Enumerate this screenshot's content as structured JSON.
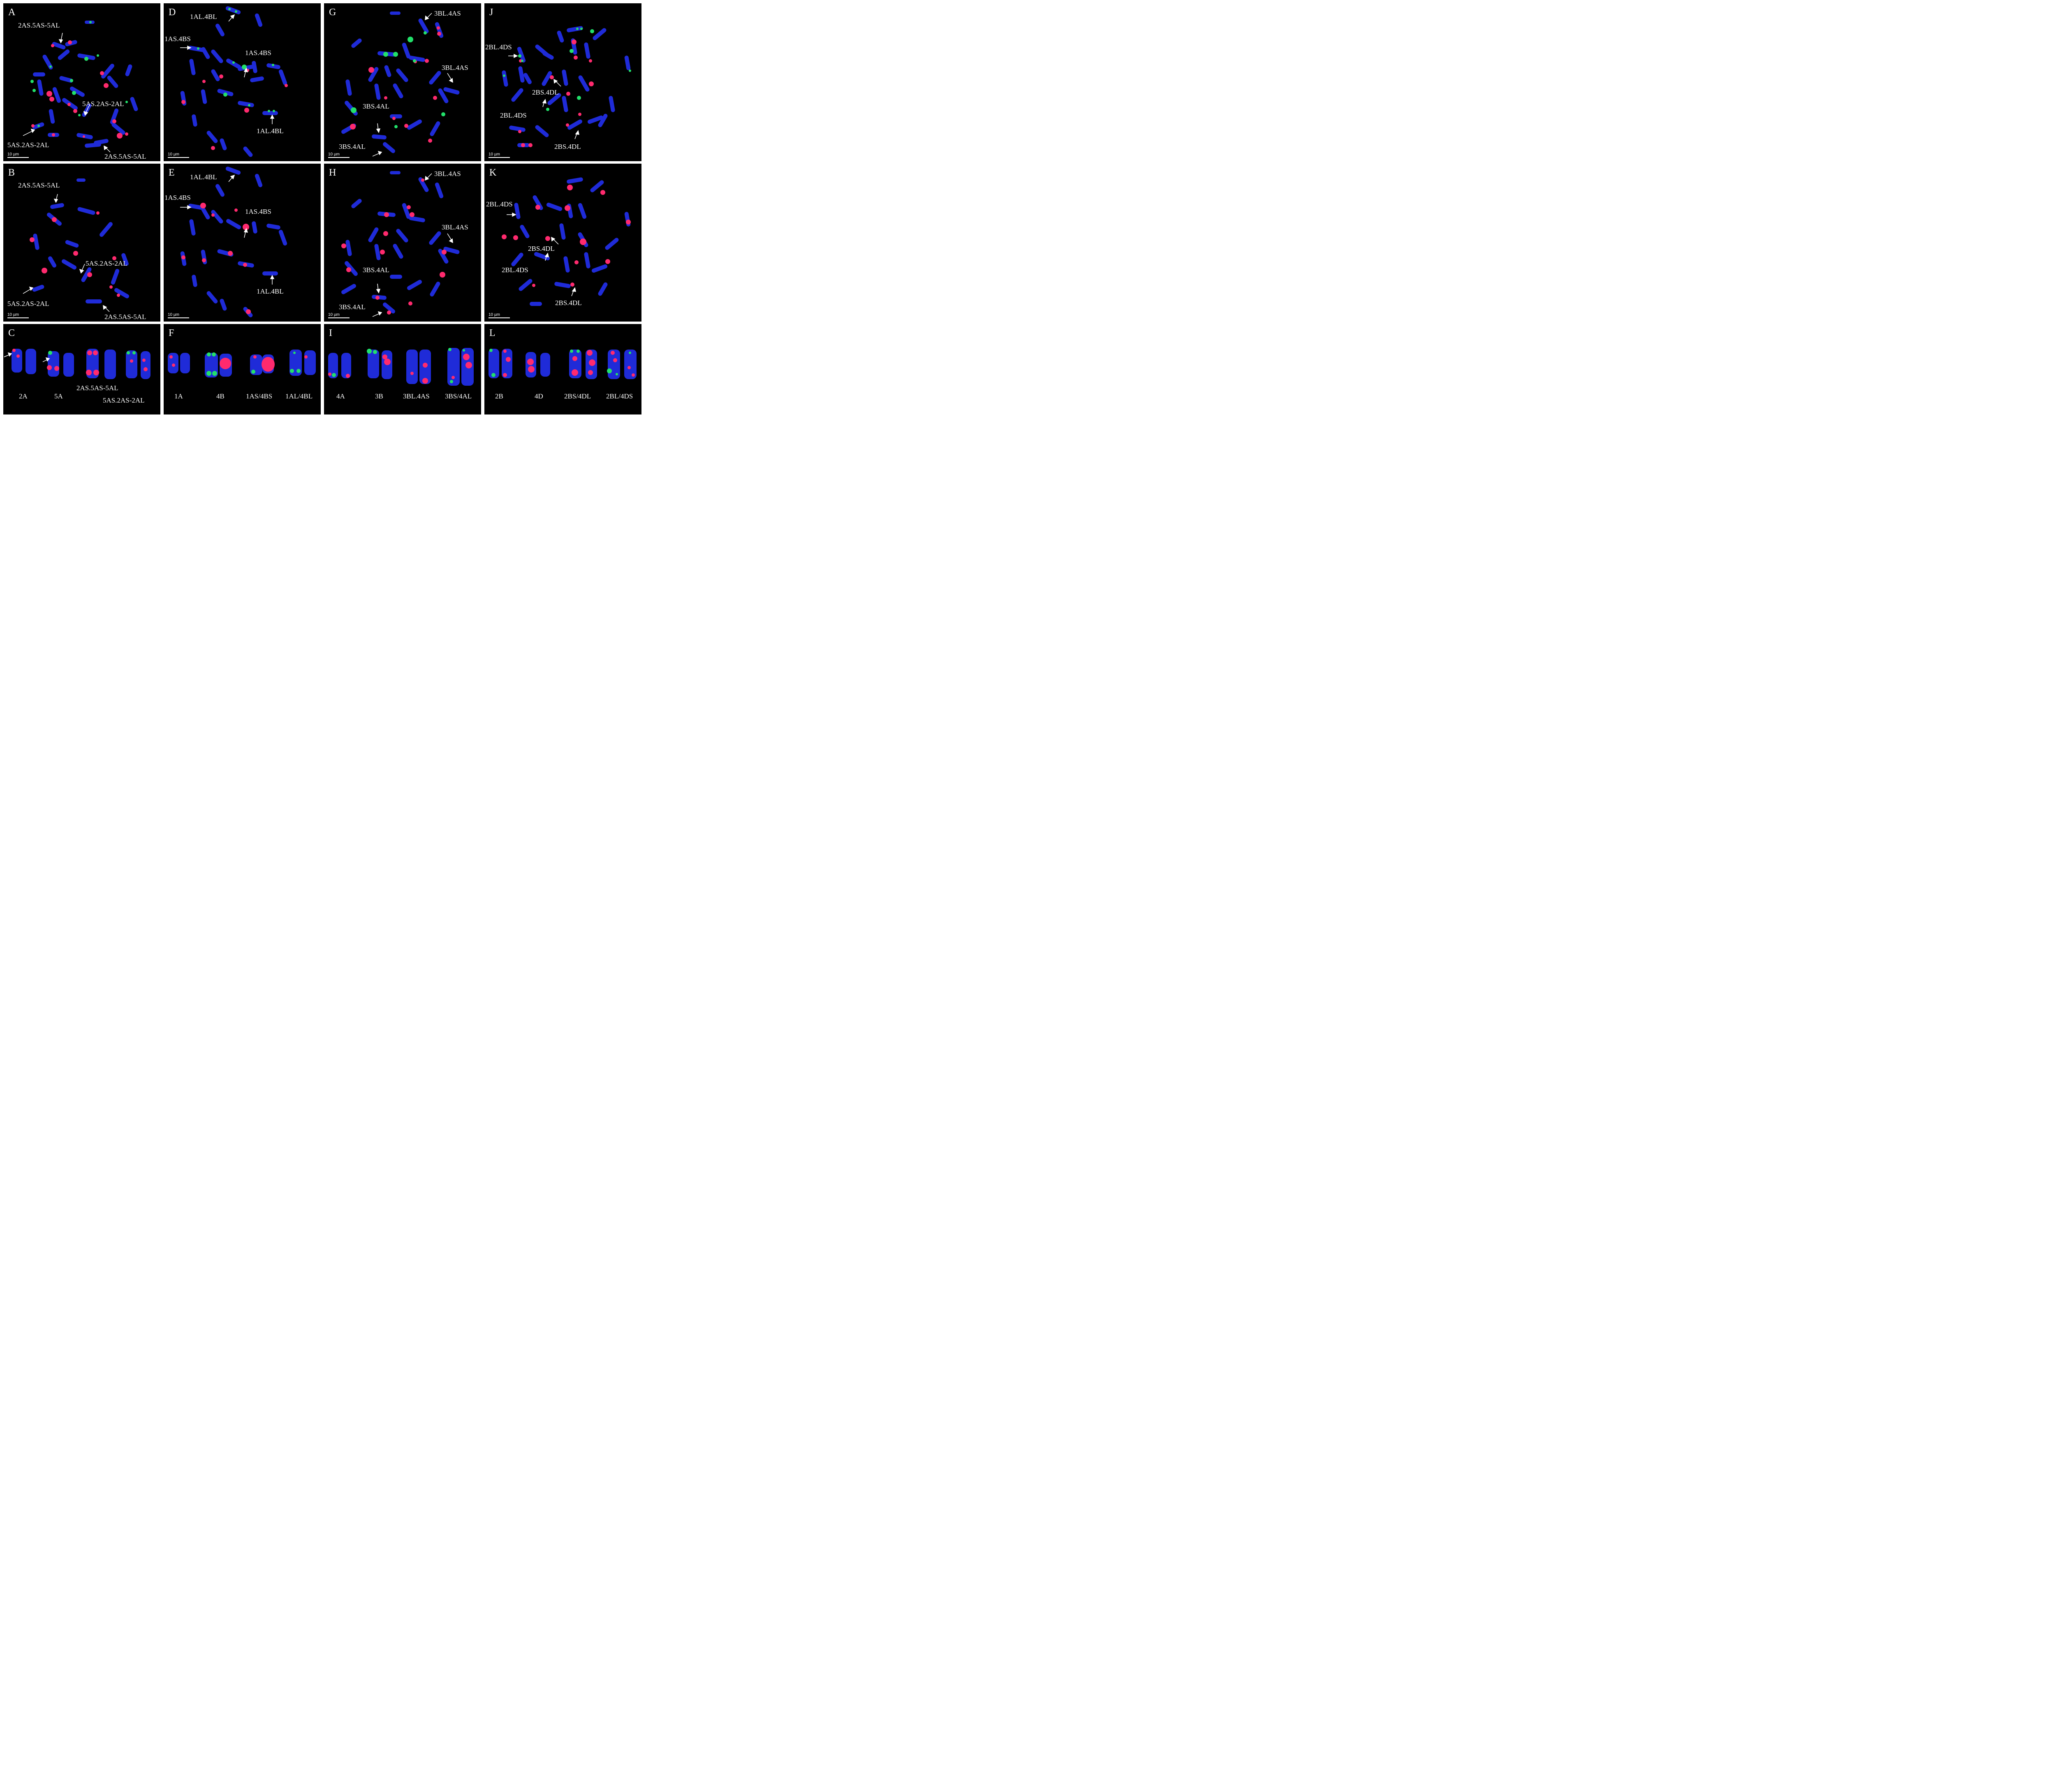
{
  "scale_text": "10 µm",
  "colors": {
    "dapi": "#1f2bd8",
    "probe_red": "#ff2a6e",
    "probe_green": "#22e06a"
  },
  "panels": {
    "A": {
      "letter": "A",
      "labels": [
        "2AS.5AS-5AL",
        "5AS.2AS-2AL",
        "5AS.2AS-2AL",
        "2AS.5AS-5AL"
      ]
    },
    "B": {
      "letter": "B",
      "labels": [
        "2AS.5AS-5AL",
        "5AS.2AS-2AL",
        "5AS.2AS-2AL",
        "2AS.5AS-5AL"
      ]
    },
    "C": {
      "letter": "C",
      "karyotype": [
        "2A",
        "5A",
        "2AS.5AS-5AL",
        "5AS.2AS-2AL"
      ]
    },
    "D": {
      "letter": "D",
      "labels": [
        "1AL.4BL",
        "1AS.4BS",
        "1AS.4BS",
        "1AL.4BL"
      ]
    },
    "E": {
      "letter": "E",
      "labels": [
        "1AL.4BL",
        "1AS.4BS",
        "1AS.4BS",
        "1AL.4BL"
      ]
    },
    "F": {
      "letter": "F",
      "karyotype": [
        "1A",
        "4B",
        "1AS/4BS",
        "1AL/4BL"
      ]
    },
    "G": {
      "letter": "G",
      "labels": [
        "3BL.4AS",
        "3BL.4AS",
        "3BS.4AL",
        "3BS.4AL"
      ]
    },
    "H": {
      "letter": "H",
      "labels": [
        "3BL.4AS",
        "3BL.4AS",
        "3BS.4AL",
        "3BS.4AL"
      ]
    },
    "I": {
      "letter": "I",
      "karyotype": [
        "4A",
        "3B",
        "3BL.4AS",
        "3BS/4AL"
      ]
    },
    "J": {
      "letter": "J",
      "labels": [
        "2BL.4DS",
        "2BS.4DL",
        "2BL.4DS",
        "2BS.4DL"
      ]
    },
    "K": {
      "letter": "K",
      "labels": [
        "2BL.4DS",
        "2BS.4DL",
        "2BL.4DS",
        "2BS.4DL"
      ]
    },
    "L": {
      "letter": "L",
      "karyotype": [
        "2B",
        "4D",
        "2BS/4DL",
        "2BL/4DS"
      ]
    }
  }
}
